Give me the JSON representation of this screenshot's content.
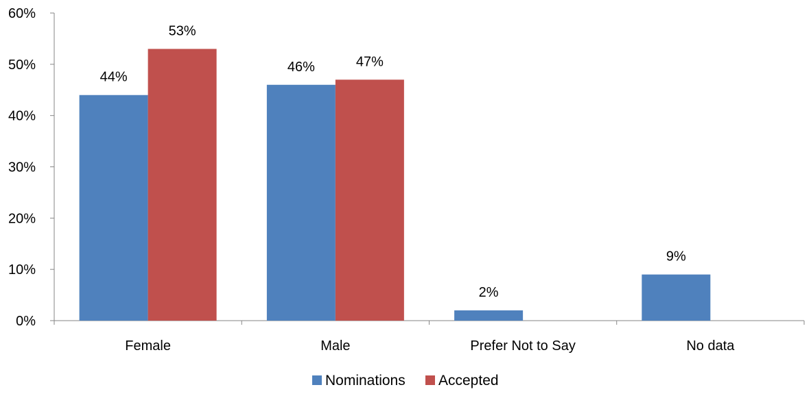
{
  "chart_data": {
    "type": "bar",
    "title": "",
    "xlabel": "",
    "ylabel": "",
    "categories": [
      "Female",
      "Male",
      "Prefer Not to Say",
      "No data"
    ],
    "series": [
      {
        "name": "Nominations",
        "color": "#4F81BD",
        "values": [
          44,
          46,
          2,
          9
        ],
        "labels": [
          "44%",
          "46%",
          "2%",
          "9%"
        ]
      },
      {
        "name": "Accepted",
        "color": "#C0504D",
        "values": [
          53,
          47,
          null,
          null
        ],
        "labels": [
          "53%",
          "47%",
          "",
          ""
        ]
      }
    ],
    "value_format": "percent",
    "ylim": [
      0,
      60
    ],
    "yticks": [
      0,
      10,
      20,
      30,
      40,
      50,
      60
    ],
    "ytick_labels": [
      "0%",
      "10%",
      "20%",
      "30%",
      "40%",
      "50%",
      "60%"
    ],
    "grid": false,
    "legend": {
      "position": "bottom",
      "entries": [
        "Nominations",
        "Accepted"
      ]
    },
    "axis_color": "#868686"
  }
}
